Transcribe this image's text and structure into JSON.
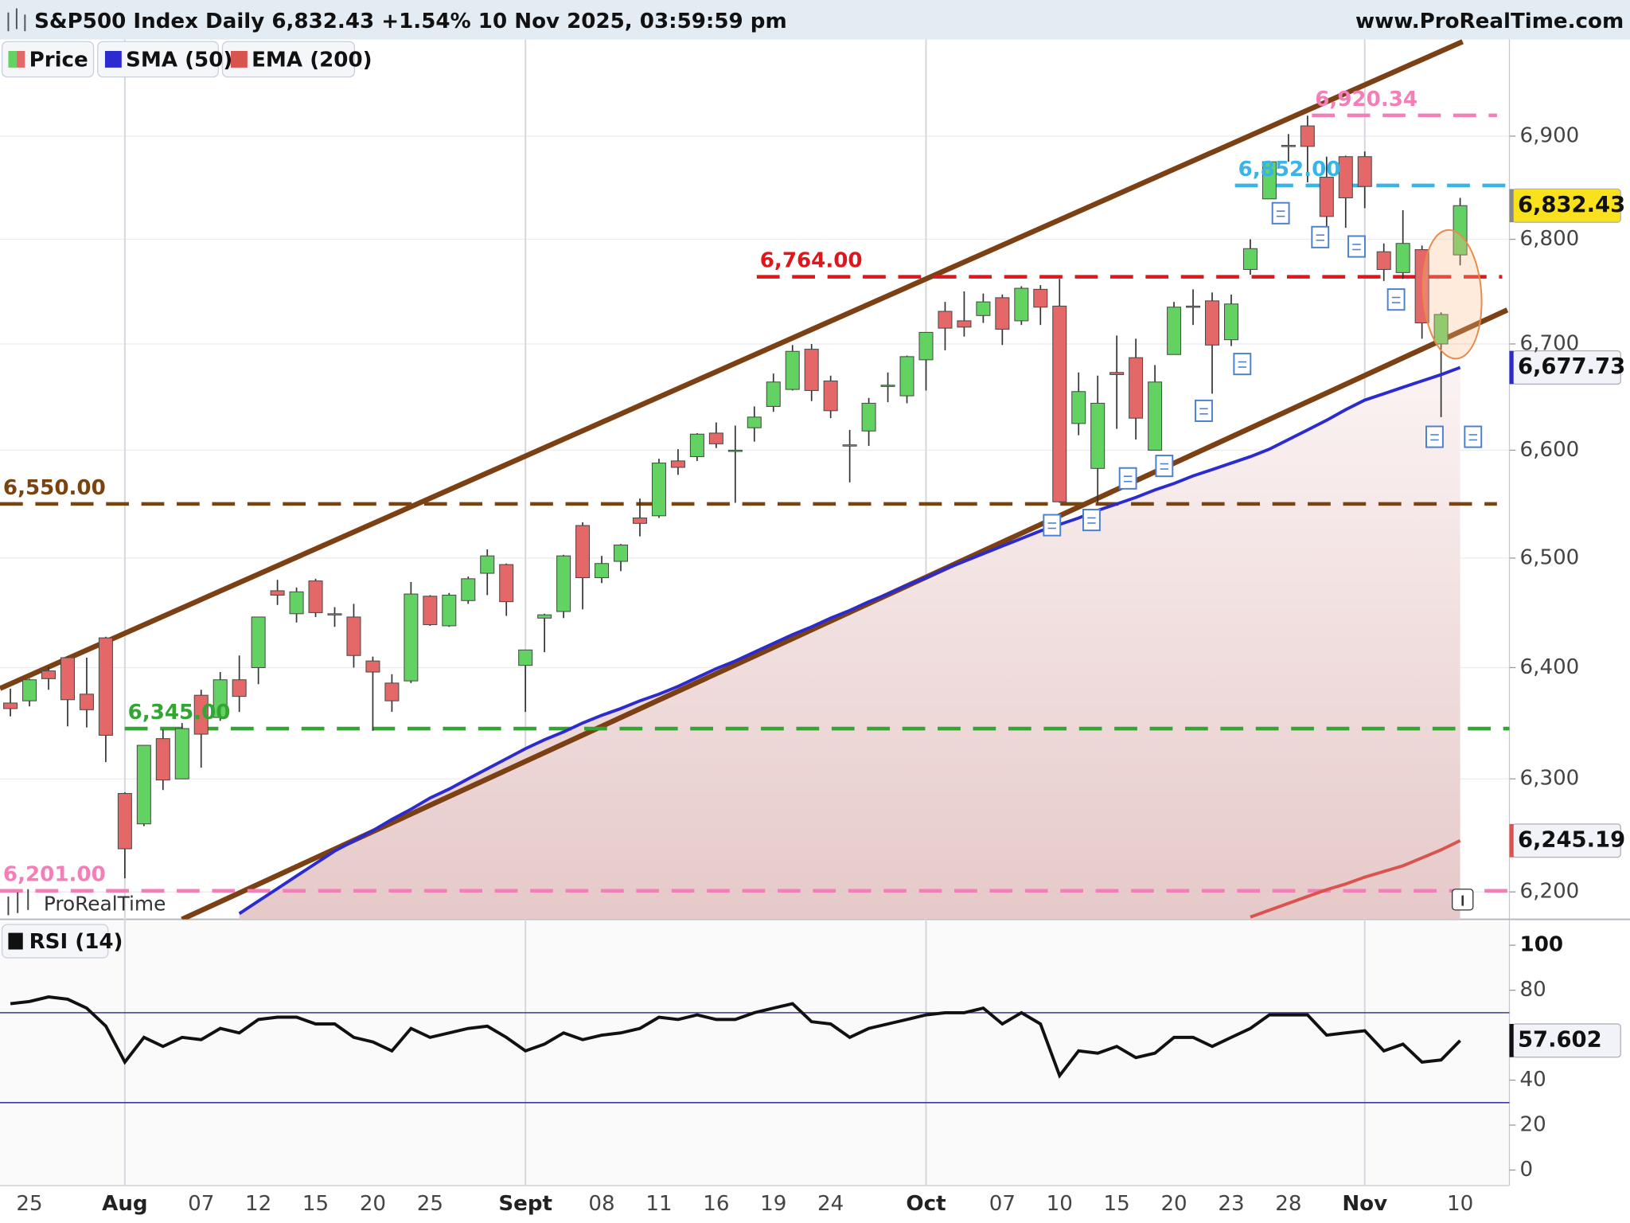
{
  "chart_data": [
    {
      "type": "candlestick",
      "title": "S&P500 Index Daily 6,832.43 +1.54% 10 Nov 2025, 03:59:59 pm",
      "source": "www.ProRealTime.com",
      "watermark": "ProRealTime",
      "log_scale": true,
      "grid": true,
      "ylim": [
        6176,
        6995
      ],
      "yticks": [
        {
          "value": 6200,
          "label": "6,200"
        },
        {
          "value": 6300,
          "label": "6,300"
        },
        {
          "value": 6400,
          "label": "6,400"
        },
        {
          "value": 6500,
          "label": "6,500"
        },
        {
          "value": 6600,
          "label": "6,600"
        },
        {
          "value": 6700,
          "label": "6,700"
        },
        {
          "value": 6800,
          "label": "6,800"
        },
        {
          "value": 6900,
          "label": "6,900"
        }
      ],
      "hlines": [
        {
          "value": 6920.34,
          "label": "6,920.34",
          "color": "#f27fb7"
        },
        {
          "value": 6852,
          "label": "6,852.00",
          "color": "#3ab4e6"
        },
        {
          "value": 6764,
          "label": "6,764.00",
          "color": "#e0161b"
        },
        {
          "value": 6550,
          "label": "6,550.00",
          "color": "#7a4312"
        },
        {
          "value": 6345,
          "label": "6,345.00",
          "color": "#33a532"
        },
        {
          "value": 6201,
          "label": "6,201.00",
          "color": "#f27fb7"
        }
      ],
      "series": [
        {
          "name": "Price",
          "up_color": "#62d262",
          "down_color": "#e46868",
          "badge_color": "#f9e11e",
          "open": [
            6368,
            6370,
            6397,
            6409,
            6376,
            6427,
            6287,
            6260,
            6336,
            6300,
            6375,
            6355,
            6389,
            6400,
            6470,
            6449,
            6479,
            6449,
            6446,
            6406,
            6386,
            6388,
            6465,
            6438,
            6461,
            6486,
            6494,
            6402,
            6445,
            6451,
            6530,
            6482,
            6497,
            6537,
            6539,
            6590,
            6594,
            6616,
            6600,
            6621,
            6641,
            6657,
            6695,
            6665,
            6605,
            6618,
            6661,
            6651,
            6685,
            6731,
            6722,
            6727,
            6744,
            6722,
            6752,
            6736,
            6625,
            6583,
            6673,
            6687,
            6600,
            6690,
            6736,
            6741,
            6704,
            6771,
            6839,
            6890,
            6910,
            6860,
            6880,
            6880,
            6788,
            6768,
            6790,
            6700,
            6785
          ],
          "high": [
            6381,
            6390,
            6401,
            6410,
            6409,
            6428,
            6288,
            6330,
            6344,
            6350,
            6380,
            6396,
            6411,
            6446,
            6480,
            6473,
            6481,
            6455,
            6458,
            6410,
            6394,
            6478,
            6466,
            6468,
            6483,
            6508,
            6495,
            6416,
            6449,
            6503,
            6533,
            6502,
            6513,
            6555,
            6592,
            6601,
            6616,
            6626,
            6623,
            6641,
            6672,
            6699,
            6700,
            6670,
            6619,
            6649,
            6673,
            6689,
            6711,
            6740,
            6750,
            6748,
            6747,
            6755,
            6756,
            6762,
            6673,
            6670,
            6708,
            6705,
            6680,
            6740,
            6752,
            6749,
            6747,
            6800,
            6876,
            6902,
            6920,
            6880,
            6881,
            6885,
            6796,
            6828,
            6794,
            6730,
            6840
          ],
          "low": [
            6356,
            6365,
            6380,
            6347,
            6346,
            6315,
            6212,
            6258,
            6290,
            6300,
            6310,
            6352,
            6360,
            6385,
            6457,
            6441,
            6446,
            6437,
            6400,
            6343,
            6360,
            6386,
            6438,
            6437,
            6458,
            6466,
            6447,
            6360,
            6414,
            6445,
            6453,
            6477,
            6488,
            6520,
            6537,
            6577,
            6590,
            6602,
            6551,
            6608,
            6636,
            6656,
            6646,
            6630,
            6570,
            6604,
            6645,
            6644,
            6656,
            6694,
            6707,
            6720,
            6699,
            6718,
            6718,
            6551,
            6614,
            6551,
            6620,
            6610,
            6600,
            6690,
            6718,
            6653,
            6698,
            6766,
            6839,
            6875,
            6855,
            6810,
            6811,
            6830,
            6760,
            6762,
            6705,
            6631,
            6775
          ],
          "close": [
            6363,
            6389,
            6390,
            6371,
            6362,
            6339,
            6238,
            6330,
            6299,
            6345,
            6340,
            6389,
            6374,
            6446,
            6466,
            6469,
            6450,
            6449,
            6411,
            6396,
            6370,
            6467,
            6439,
            6466,
            6481,
            6502,
            6460,
            6416,
            6448,
            6502,
            6482,
            6495,
            6512,
            6532,
            6588,
            6584,
            6615,
            6606,
            6600,
            6631,
            6664,
            6693,
            6656,
            6637,
            6605,
            6644,
            6661,
            6688,
            6711,
            6715,
            6716,
            6740,
            6714,
            6753,
            6735,
            6552,
            6655,
            6644,
            6671,
            6630,
            6664,
            6735,
            6735,
            6699,
            6738,
            6791,
            6875,
            6891,
            6890,
            6822,
            6840,
            6851,
            6771,
            6796,
            6720,
            6728,
            6832.43
          ],
          "value_labels": [
            null,
            null,
            null,
            null,
            null,
            null,
            null,
            null,
            null,
            null,
            null,
            null,
            null,
            null,
            null,
            null,
            null,
            null,
            null,
            null,
            null,
            null,
            null,
            null,
            null,
            null,
            null,
            null,
            null,
            null,
            null,
            null,
            null,
            null,
            null,
            null,
            null,
            null,
            null,
            null,
            null,
            null,
            null,
            null,
            null,
            null,
            null,
            null,
            null,
            null,
            null,
            null,
            null,
            null,
            null,
            null,
            null,
            null,
            null,
            null,
            null,
            null,
            null,
            null,
            null,
            null,
            null,
            null,
            null,
            null,
            null,
            null,
            null,
            null,
            null,
            null,
            "6,832.43"
          ]
        },
        {
          "name": "SMA (50)",
          "color": "#2b2bd0",
          "values": [
            null,
            null,
            null,
            null,
            null,
            null,
            null,
            null,
            null,
            null,
            null,
            null,
            6181,
            6192,
            6203,
            6214,
            6225,
            6236,
            6245,
            6254,
            6264,
            6273,
            6283,
            6291,
            6300,
            6309,
            6318,
            6327,
            6335,
            6342,
            6350,
            6357,
            6363,
            6370,
            6376,
            6383,
            6391,
            6399,
            6406,
            6414,
            6422,
            6430,
            6437,
            6445,
            6452,
            6460,
            6467,
            6475,
            6482,
            6490,
            6497,
            6504,
            6511,
            6518,
            6525,
            6531,
            6537,
            6544,
            6550,
            6556,
            6563,
            6569,
            6576,
            6582,
            6588,
            6594,
            6601,
            6610,
            6619,
            6628,
            6638,
            6647,
            6653,
            6659,
            6665,
            6671,
            6677.73
          ],
          "value_labels": [
            null,
            null,
            null,
            null,
            null,
            null,
            null,
            null,
            null,
            null,
            null,
            null,
            null,
            null,
            null,
            null,
            null,
            null,
            null,
            null,
            null,
            null,
            null,
            null,
            null,
            null,
            null,
            null,
            null,
            null,
            null,
            null,
            null,
            null,
            null,
            null,
            null,
            null,
            null,
            null,
            null,
            null,
            null,
            null,
            null,
            null,
            null,
            null,
            null,
            null,
            null,
            null,
            null,
            null,
            null,
            null,
            null,
            null,
            null,
            null,
            null,
            null,
            null,
            null,
            null,
            null,
            null,
            null,
            null,
            null,
            null,
            null,
            null,
            null,
            null,
            null,
            "6,677.73"
          ]
        },
        {
          "name": "EMA (200)",
          "color": "#d9534f",
          "values": [
            null,
            null,
            null,
            null,
            null,
            null,
            null,
            null,
            null,
            null,
            null,
            null,
            null,
            null,
            null,
            null,
            null,
            null,
            null,
            null,
            null,
            null,
            null,
            null,
            null,
            null,
            null,
            null,
            null,
            null,
            null,
            null,
            null,
            null,
            null,
            null,
            null,
            null,
            null,
            null,
            null,
            null,
            null,
            null,
            null,
            null,
            null,
            null,
            null,
            null,
            null,
            null,
            null,
            null,
            null,
            null,
            null,
            null,
            null,
            null,
            null,
            null,
            null,
            null,
            null,
            6178,
            6184,
            6190,
            6196,
            6202,
            6207,
            6213,
            6218,
            6223,
            6230,
            6237,
            6245.19
          ],
          "value_labels": [
            null,
            null,
            null,
            null,
            null,
            null,
            null,
            null,
            null,
            null,
            null,
            null,
            null,
            null,
            null,
            null,
            null,
            null,
            null,
            null,
            null,
            null,
            null,
            null,
            null,
            null,
            null,
            null,
            null,
            null,
            null,
            null,
            null,
            null,
            null,
            null,
            null,
            null,
            null,
            null,
            null,
            null,
            null,
            null,
            null,
            null,
            null,
            null,
            null,
            null,
            null,
            null,
            null,
            null,
            null,
            null,
            null,
            null,
            null,
            null,
            null,
            null,
            null,
            null,
            null,
            null,
            null,
            null,
            null,
            null,
            null,
            null,
            null,
            null,
            null,
            null,
            "6,245.19"
          ]
        }
      ]
    },
    {
      "type": "line",
      "categories": [
        null,
        "25",
        null,
        null,
        null,
        null,
        "Aug",
        null,
        null,
        null,
        "07",
        null,
        null,
        "12",
        null,
        null,
        "15",
        null,
        null,
        "20",
        null,
        null,
        "25",
        null,
        null,
        null,
        null,
        "Sept",
        null,
        null,
        null,
        "08",
        null,
        null,
        "11",
        null,
        null,
        "16",
        null,
        null,
        "19",
        null,
        null,
        "24",
        null,
        null,
        null,
        null,
        "Oct",
        null,
        null,
        null,
        "07",
        null,
        null,
        "10",
        null,
        null,
        "15",
        null,
        null,
        "20",
        null,
        null,
        "23",
        null,
        null,
        "28",
        null,
        null,
        null,
        "Nov",
        null,
        null,
        null,
        null,
        "10"
      ],
      "ylim": [
        -6.9,
        110.6
      ],
      "yticks": [
        0,
        20,
        40,
        80,
        100
      ],
      "levels": [
        30,
        70
      ],
      "level_color": "#3a3aa0",
      "series": [
        {
          "name": "RSI (14)",
          "color": "#111111",
          "values": [
            74,
            75,
            77,
            76,
            72,
            64,
            48,
            59,
            55,
            59,
            58,
            63,
            61,
            67,
            68,
            68,
            65,
            65,
            59,
            57,
            53,
            63,
            59,
            61,
            63,
            64,
            59,
            53,
            56,
            61,
            58,
            60,
            61,
            63,
            68,
            67,
            69,
            67,
            67,
            70,
            72,
            74,
            66,
            65,
            59,
            63,
            65,
            67,
            69,
            70,
            70,
            72,
            65,
            70,
            65,
            42,
            53,
            52,
            55,
            50,
            52,
            59,
            59,
            55,
            59,
            63,
            69,
            69,
            69,
            60,
            61,
            62,
            53,
            56,
            48,
            49,
            57.602
          ],
          "value_labels": [
            null,
            null,
            null,
            null,
            null,
            null,
            null,
            null,
            null,
            null,
            null,
            null,
            null,
            null,
            null,
            null,
            null,
            null,
            null,
            null,
            null,
            null,
            null,
            null,
            null,
            null,
            null,
            null,
            null,
            null,
            null,
            null,
            null,
            null,
            null,
            null,
            null,
            null,
            null,
            null,
            null,
            null,
            null,
            null,
            null,
            null,
            null,
            null,
            null,
            null,
            null,
            null,
            null,
            null,
            null,
            null,
            null,
            null,
            null,
            null,
            null,
            null,
            null,
            null,
            null,
            null,
            null,
            null,
            null,
            null,
            null,
            null,
            null,
            null,
            null,
            null,
            "57.602"
          ]
        }
      ]
    }
  ]
}
